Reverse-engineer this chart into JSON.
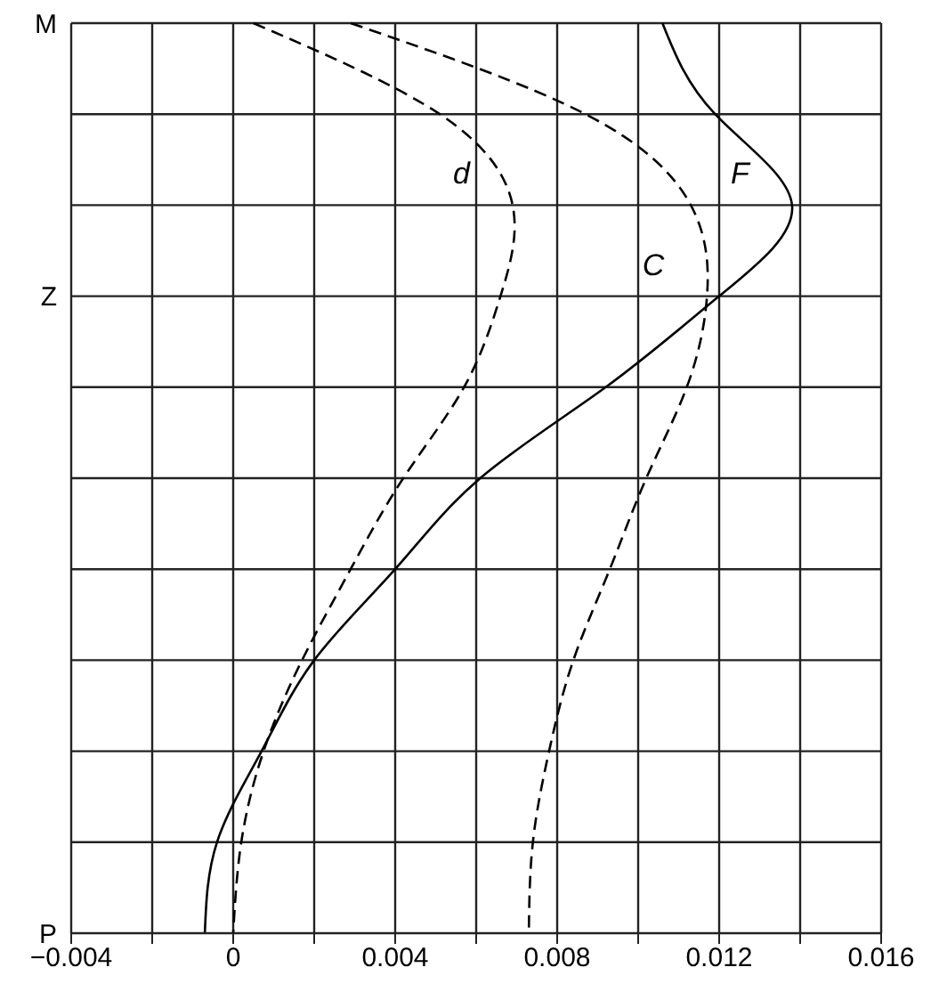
{
  "chart_data": {
    "type": "line",
    "orientation": "horizontal",
    "categories": [
      "M",
      null,
      null,
      "Z",
      null,
      null,
      null,
      null,
      null,
      null,
      "P"
    ],
    "series": [
      {
        "name": "F",
        "color": "#000000",
        "line_style": "solid",
        "values": [
          0.0106,
          0.0119,
          0.0138,
          0.012,
          0.0092,
          0.0061,
          0.004,
          0.002,
          0.0007,
          -0.0004,
          -0.0007
        ]
      },
      {
        "name": "d",
        "color": "#000000",
        "line_style": "dashed",
        "values": [
          0.0005,
          0.0051,
          0.0069,
          0.0066,
          0.0057,
          0.0042,
          0.0029,
          0.0017,
          0.00075,
          0.0002,
          0.0
        ]
      },
      {
        "name": "C",
        "color": "#000000",
        "line_style": "dashed",
        "values": [
          0.0029,
          0.0087,
          0.0113,
          0.0117,
          0.0112,
          0.0102,
          0.0093,
          0.0084,
          0.0078,
          0.0074,
          0.0073
        ]
      }
    ],
    "xlim": [
      -0.004,
      0.016
    ],
    "xticks": [
      {
        "value": -0.004,
        "label": "−0.004"
      },
      {
        "value": -0.002,
        "label": null
      },
      0,
      {
        "value": 0.002,
        "label": null
      },
      0.004,
      {
        "value": 0.006,
        "label": null
      },
      0.008,
      {
        "value": 0.01,
        "label": null
      },
      0.012,
      {
        "value": 0.014,
        "label": null
      },
      0.016
    ],
    "grid": true,
    "marker": "none"
  }
}
